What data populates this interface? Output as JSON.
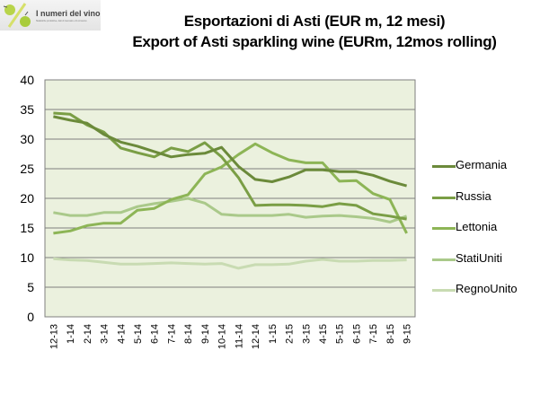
{
  "logo": {
    "title": "I numeri del vino",
    "subtitle": "Statistiche produttive, dati di mercato e di consumo"
  },
  "chart_data": {
    "type": "line",
    "title": "Esportazioni di Asti (EUR m, 12 mesi)",
    "subtitle": "Export of Asti sparkling wine (EURm, 12mos rolling)",
    "xlabel": "",
    "ylabel": "",
    "ylim": [
      0,
      40
    ],
    "yticks": [
      0,
      5,
      10,
      15,
      20,
      25,
      30,
      35,
      40
    ],
    "grid": true,
    "legend_position": "right",
    "categories": [
      "12-13",
      "1-14",
      "2-14",
      "3-14",
      "4-14",
      "5-14",
      "6-14",
      "7-14",
      "8-14",
      "9-14",
      "10-14",
      "11-14",
      "12-14",
      "1-15",
      "2-15",
      "3-15",
      "4-15",
      "5-15",
      "6-15",
      "7-15",
      "8-15",
      "9-15"
    ],
    "series": [
      {
        "name": "Germania",
        "color": "#6b8a3a",
        "values": [
          33.8,
          33.2,
          32.7,
          30.8,
          29.5,
          28.8,
          27.9,
          27.0,
          27.4,
          27.6,
          28.6,
          25.4,
          23.2,
          22.8,
          23.6,
          24.8,
          24.8,
          24.5,
          24.5,
          23.9,
          22.9,
          22.1
        ]
      },
      {
        "name": "Russia",
        "color": "#7a9e45",
        "values": [
          34.4,
          34.2,
          32.4,
          31.2,
          28.5,
          27.7,
          27.0,
          28.5,
          27.9,
          29.4,
          27.0,
          23.5,
          18.8,
          18.9,
          18.9,
          18.8,
          18.6,
          19.1,
          18.8,
          17.4,
          17.0,
          16.5
        ]
      },
      {
        "name": "Lettonia",
        "color": "#8db556",
        "values": [
          14.1,
          14.5,
          15.4,
          15.8,
          15.8,
          18.0,
          18.3,
          19.8,
          20.6,
          24.1,
          25.3,
          27.4,
          29.2,
          27.7,
          26.5,
          26.0,
          26.0,
          22.9,
          23.0,
          20.8,
          19.8,
          14.1
        ]
      },
      {
        "name": "StatiUniti",
        "color": "#aac98a",
        "values": [
          17.6,
          17.1,
          17.1,
          17.6,
          17.6,
          18.6,
          19.1,
          19.5,
          20.0,
          19.2,
          17.3,
          17.1,
          17.1,
          17.1,
          17.3,
          16.8,
          17.0,
          17.1,
          16.9,
          16.6,
          16.0,
          17.0
        ]
      },
      {
        "name": "RegnoUnito",
        "color": "#c8dbb2",
        "values": [
          9.8,
          9.6,
          9.5,
          9.2,
          8.9,
          8.9,
          9.0,
          9.1,
          9.0,
          8.9,
          9.0,
          8.2,
          8.8,
          8.8,
          8.9,
          9.4,
          9.7,
          9.4,
          9.4,
          9.5,
          9.5,
          9.6
        ]
      }
    ]
  },
  "colors": {
    "plot_background": "#ebf1de",
    "gridline": "#7f7f7f"
  }
}
